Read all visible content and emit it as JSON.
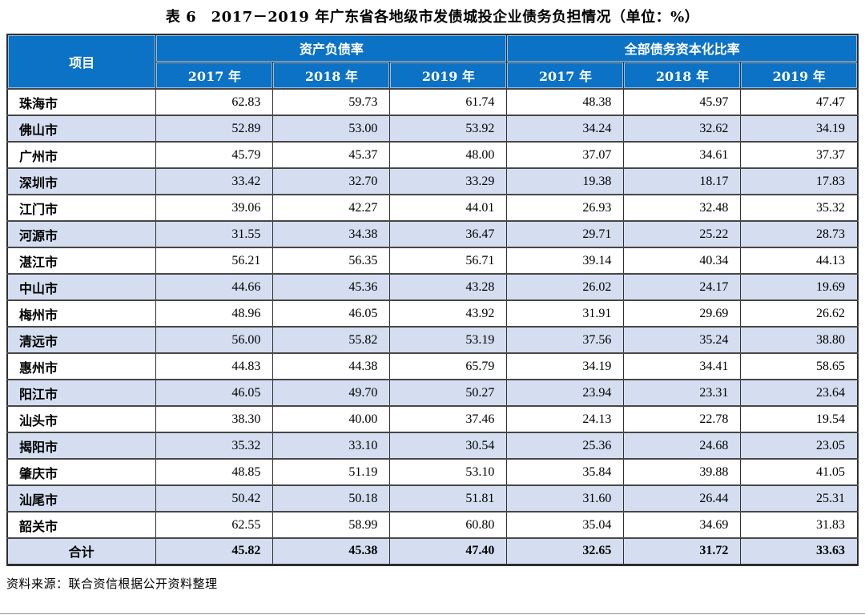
{
  "title": "表 6　2017－2019 年广东省各地级市发债城投企业债务负担情况（单位：%）",
  "table": {
    "corner_label": "项目",
    "groups": [
      {
        "label": "资产负债率",
        "years": [
          "2017 年",
          "2018 年",
          "2019 年"
        ]
      },
      {
        "label": "全部债务资本化比率",
        "years": [
          "2017 年",
          "2018 年",
          "2019 年"
        ]
      }
    ],
    "rows": [
      {
        "name": "珠海市",
        "values": [
          "62.83",
          "59.73",
          "61.74",
          "48.38",
          "45.97",
          "47.47"
        ]
      },
      {
        "name": "佛山市",
        "values": [
          "52.89",
          "53.00",
          "53.92",
          "34.24",
          "32.62",
          "34.19"
        ]
      },
      {
        "name": "广州市",
        "values": [
          "45.79",
          "45.37",
          "48.00",
          "37.07",
          "34.61",
          "37.37"
        ]
      },
      {
        "name": "深圳市",
        "values": [
          "33.42",
          "32.70",
          "33.29",
          "19.38",
          "18.17",
          "17.83"
        ]
      },
      {
        "name": "江门市",
        "values": [
          "39.06",
          "42.27",
          "44.01",
          "26.93",
          "32.48",
          "35.32"
        ]
      },
      {
        "name": "河源市",
        "values": [
          "31.55",
          "34.38",
          "36.47",
          "29.71",
          "25.22",
          "28.73"
        ]
      },
      {
        "name": "湛江市",
        "values": [
          "56.21",
          "56.35",
          "56.71",
          "39.14",
          "40.34",
          "44.13"
        ]
      },
      {
        "name": "中山市",
        "values": [
          "44.66",
          "45.36",
          "43.28",
          "26.02",
          "24.17",
          "19.69"
        ]
      },
      {
        "name": "梅州市",
        "values": [
          "48.96",
          "46.05",
          "43.92",
          "31.91",
          "29.69",
          "26.62"
        ]
      },
      {
        "name": "清远市",
        "values": [
          "56.00",
          "55.82",
          "53.19",
          "37.56",
          "35.24",
          "38.80"
        ]
      },
      {
        "name": "惠州市",
        "values": [
          "44.83",
          "44.38",
          "65.79",
          "34.19",
          "34.41",
          "58.65"
        ]
      },
      {
        "name": "阳江市",
        "values": [
          "46.05",
          "49.70",
          "50.27",
          "23.94",
          "23.31",
          "23.64"
        ]
      },
      {
        "name": "汕头市",
        "values": [
          "38.30",
          "40.00",
          "37.46",
          "24.13",
          "22.78",
          "19.54"
        ]
      },
      {
        "name": "揭阳市",
        "values": [
          "35.32",
          "33.10",
          "30.54",
          "25.36",
          "24.68",
          "23.05"
        ]
      },
      {
        "name": "肇庆市",
        "values": [
          "48.85",
          "51.19",
          "53.10",
          "35.84",
          "39.88",
          "41.05"
        ]
      },
      {
        "name": "汕尾市",
        "values": [
          "50.42",
          "50.18",
          "51.81",
          "31.60",
          "26.44",
          "25.31"
        ]
      },
      {
        "name": "韶关市",
        "values": [
          "62.55",
          "58.99",
          "60.80",
          "35.04",
          "34.69",
          "31.83"
        ]
      }
    ],
    "total": {
      "name": "合计",
      "values": [
        "45.82",
        "45.38",
        "47.40",
        "32.65",
        "31.72",
        "33.63"
      ]
    }
  },
  "source_note": "资料来源：联合资信根据公开资料整理",
  "colors": {
    "header_bg": "#0b72c6",
    "header_text": "#ffffff",
    "stripe_bg": "#d4def0",
    "grid_line": "#2f2f2f",
    "row_rule": "#474747"
  }
}
